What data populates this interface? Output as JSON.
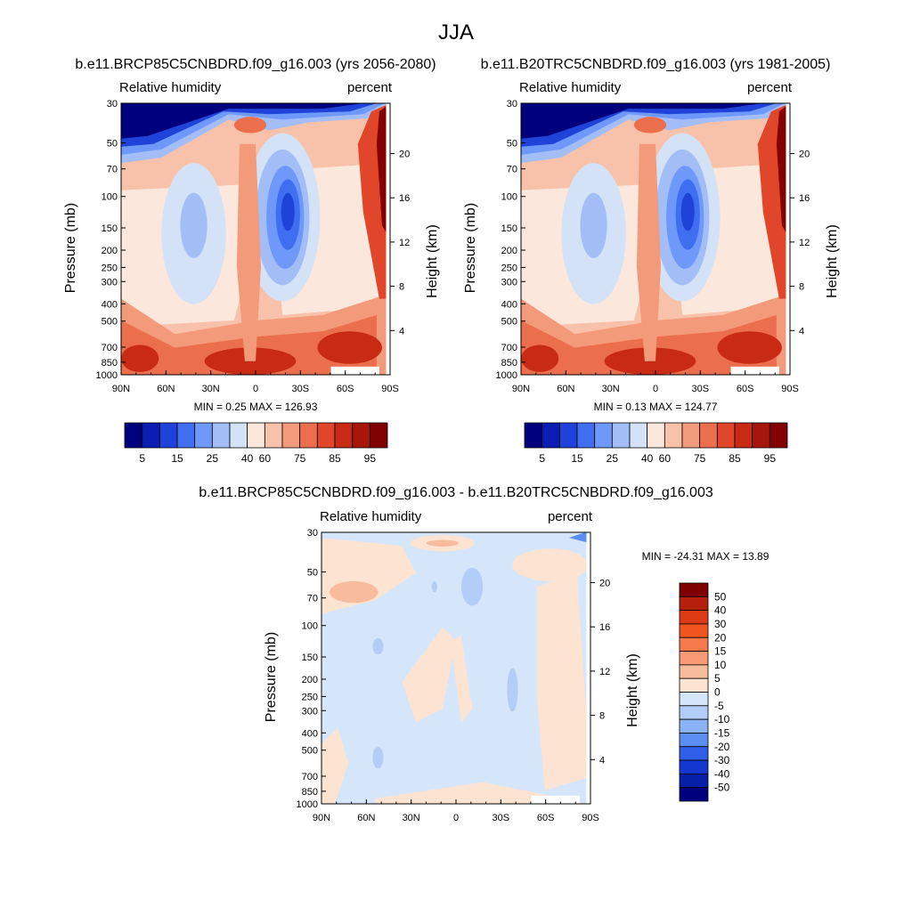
{
  "figure": {
    "title": "JJA"
  },
  "chart_data": [
    {
      "type": "heatmap",
      "title": "b.e11.BRCP85C5CNBDRD.f09_g16.003 (yrs 2056-2080)",
      "left_label": "Relative humidity",
      "right_label": "percent",
      "ylabel": "Pressure (mb)",
      "y2label": "Height (km)",
      "x_ticks": [
        "90N",
        "60N",
        "30N",
        "0",
        "30S",
        "60S",
        "90S"
      ],
      "y_ticks": [
        30,
        50,
        70,
        100,
        150,
        200,
        250,
        300,
        400,
        500,
        700,
        850,
        1000
      ],
      "y2_ticks": [
        20,
        16,
        12,
        8,
        4
      ],
      "stats": "MIN =   0.25  MAX = 126.93",
      "colorbar": {
        "orientation": "horizontal",
        "labels": [
          "5",
          "15",
          "25",
          "40",
          "60",
          "75",
          "85",
          "95"
        ],
        "colors": [
          "#00007f",
          "#0a1eb4",
          "#1f43d8",
          "#3f6ef0",
          "#6e98fa",
          "#a3bdf7",
          "#d3e2f7",
          "#fbe7dc",
          "#f8c2aa",
          "#f39a7a",
          "#ec6f4d",
          "#e1462a",
          "#c92a13",
          "#a8150a",
          "#820000"
        ]
      }
    },
    {
      "type": "heatmap",
      "title": "b.e11.B20TRC5CNBDRD.f09_g16.003 (yrs 1981-2005)",
      "left_label": "Relative humidity",
      "right_label": "percent",
      "ylabel": "Pressure (mb)",
      "y2label": "Height (km)",
      "x_ticks": [
        "90N",
        "60N",
        "30N",
        "0",
        "30S",
        "60S",
        "90S"
      ],
      "y_ticks": [
        30,
        50,
        70,
        100,
        150,
        200,
        250,
        300,
        400,
        500,
        700,
        850,
        1000
      ],
      "y2_ticks": [
        20,
        16,
        12,
        8,
        4
      ],
      "stats": "MIN =   0.13  MAX = 124.77",
      "colorbar": {
        "orientation": "horizontal",
        "labels": [
          "5",
          "15",
          "25",
          "40",
          "60",
          "75",
          "85",
          "95"
        ],
        "colors": [
          "#00007f",
          "#0a1eb4",
          "#1f43d8",
          "#3f6ef0",
          "#6e98fa",
          "#a3bdf7",
          "#d3e2f7",
          "#fbe7dc",
          "#f8c2aa",
          "#f39a7a",
          "#ec6f4d",
          "#e1462a",
          "#c92a13",
          "#a8150a",
          "#820000"
        ]
      }
    },
    {
      "type": "heatmap",
      "title": "b.e11.BRCP85C5CNBDRD.f09_g16.003 - b.e11.B20TRC5CNBDRD.f09_g16.003",
      "left_label": "Relative humidity",
      "right_label": "percent",
      "ylabel": "Pressure (mb)",
      "y2label": "Height (km)",
      "x_ticks": [
        "90N",
        "60N",
        "30N",
        "0",
        "30S",
        "60S",
        "90S"
      ],
      "y_ticks": [
        30,
        50,
        70,
        100,
        150,
        200,
        250,
        300,
        400,
        500,
        700,
        850,
        1000
      ],
      "y2_ticks": [
        20,
        16,
        12,
        8,
        4
      ],
      "stats": "MIN = -24.31  MAX =  13.89",
      "colorbar": {
        "orientation": "vertical",
        "labels": [
          "50",
          "40",
          "30",
          "20",
          "15",
          "10",
          "5",
          "0",
          "-5",
          "-10",
          "-15",
          "-20",
          "-30",
          "-40",
          "-50"
        ],
        "colors": [
          "#7f0000",
          "#b4200b",
          "#dc3a14",
          "#f2541f",
          "#f77a4d",
          "#f89a73",
          "#f8bc9c",
          "#fde3d2",
          "#d6e6fa",
          "#b2cdf7",
          "#8ab2f4",
          "#5b8ef0",
          "#2f5fe8",
          "#1437cf",
          "#0820a8",
          "#00007f"
        ]
      }
    }
  ]
}
